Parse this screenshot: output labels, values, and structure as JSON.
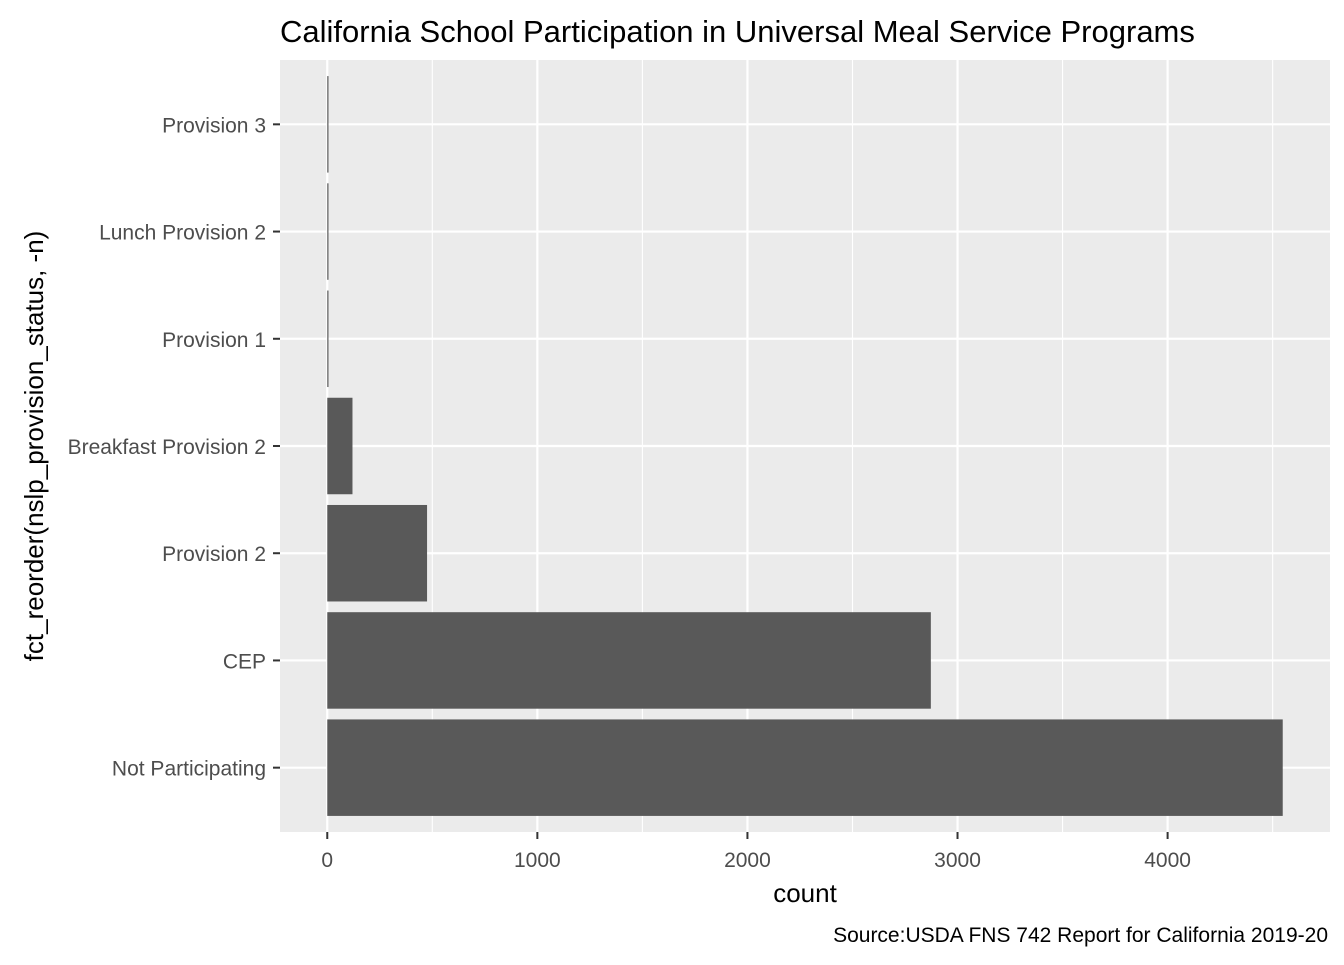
{
  "chart_data": {
    "type": "bar",
    "orientation": "horizontal",
    "title": "California School Participation in Universal Meal Service Programs",
    "xlabel": "count",
    "ylabel": "fct_reorder(nslp_provision_status, -n)",
    "caption": "Source:USDA FNS 742 Report for California 2019-20",
    "categories": [
      "Not Participating",
      "CEP",
      "Provision 2",
      "Breakfast Provision 2",
      "Provision 1",
      "Lunch Provision 2",
      "Provision 3"
    ],
    "values": [
      4548,
      2873,
      475,
      120,
      2,
      2,
      2
    ],
    "xlim": [
      -225,
      4773
    ],
    "xticks": [
      0,
      1000,
      2000,
      3000,
      4000
    ],
    "grid": true,
    "legend": "none",
    "colors": {
      "bar": "#595959",
      "panel": "#EBEBEB",
      "grid": "#FFFFFF",
      "text": "#4D4D4D",
      "title": "#000000"
    }
  }
}
